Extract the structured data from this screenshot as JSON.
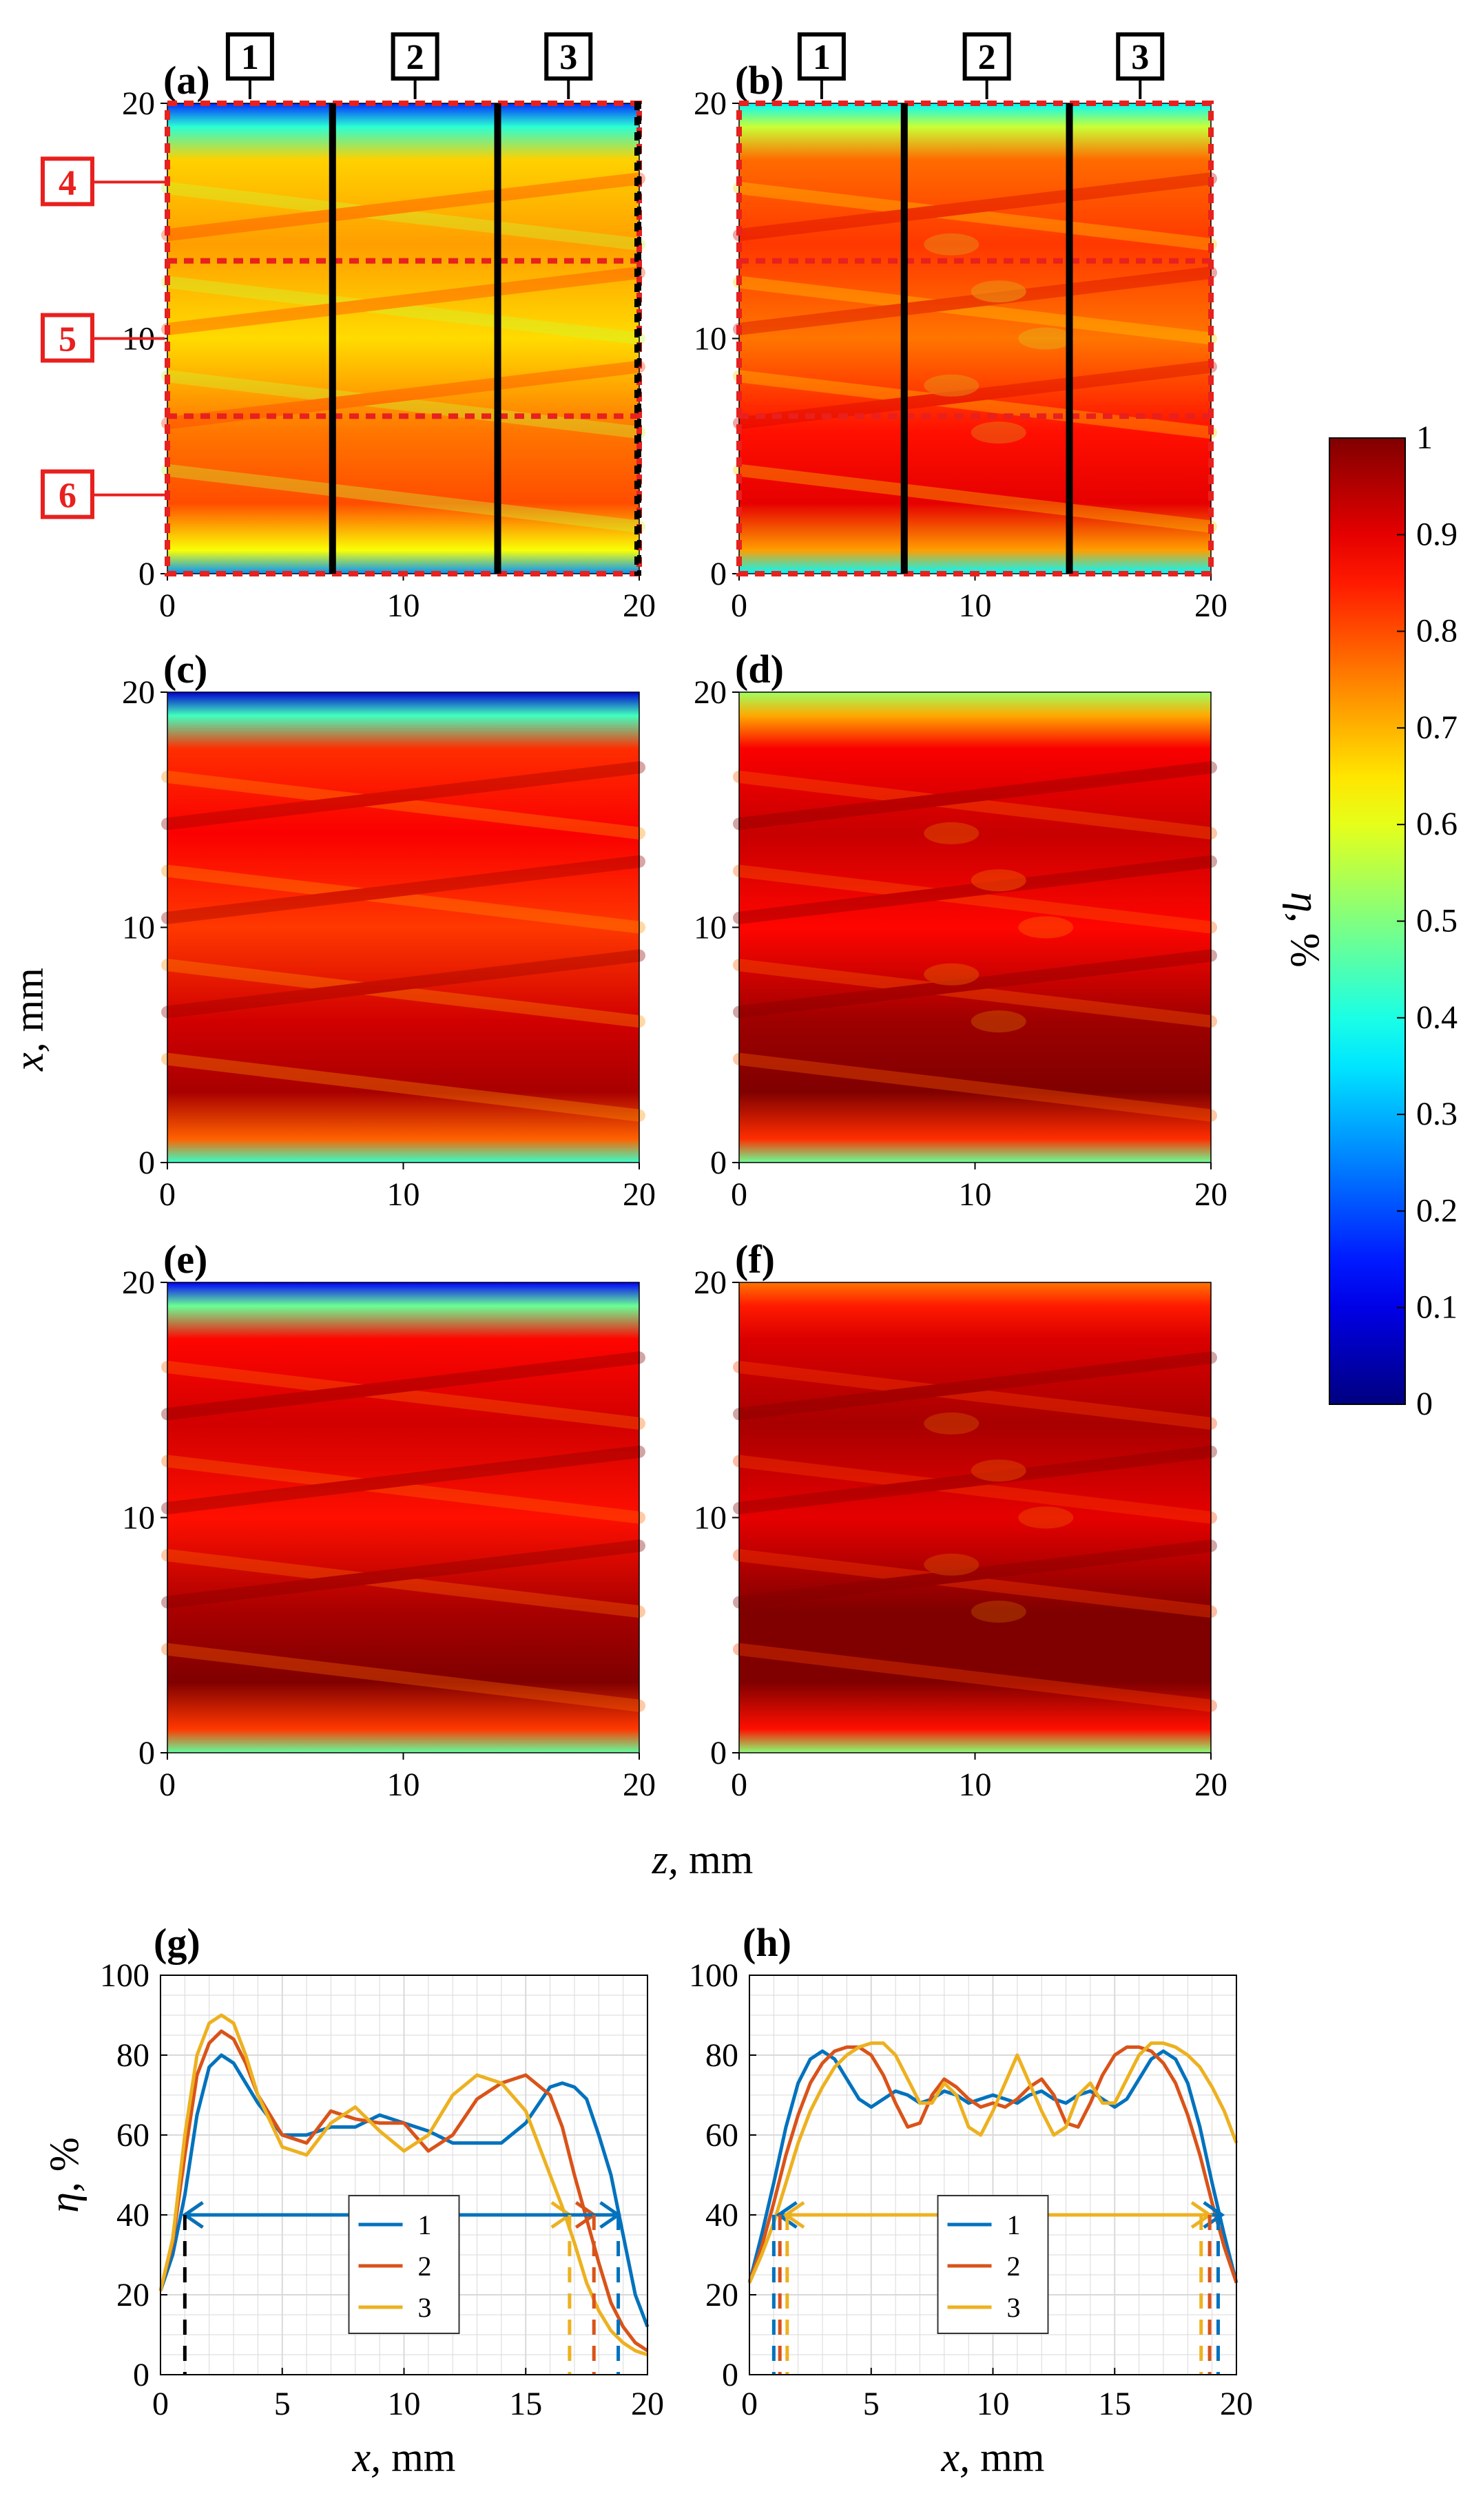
{
  "figure": {
    "panels": [
      {
        "id": "a",
        "label": "(a)",
        "type": "heatmap",
        "kind": "exp",
        "level": 0.72,
        "top_fade": 0.55,
        "bands": true
      },
      {
        "id": "b",
        "label": "(b)",
        "type": "heatmap",
        "kind": "sim",
        "level": 0.82,
        "top_fade": 0.45,
        "bands": true
      },
      {
        "id": "c",
        "label": "(c)",
        "type": "heatmap",
        "kind": "exp",
        "level": 0.88,
        "top_fade": 0.8,
        "bands": false
      },
      {
        "id": "d",
        "label": "(d)",
        "type": "heatmap",
        "kind": "sim",
        "level": 0.93,
        "top_fade": 0.4,
        "bands": false
      },
      {
        "id": "e",
        "label": "(e)",
        "type": "heatmap",
        "kind": "exp",
        "level": 0.92,
        "top_fade": 0.8,
        "bands": false
      },
      {
        "id": "f",
        "label": "(f)",
        "type": "heatmap",
        "kind": "sim",
        "level": 0.96,
        "top_fade": 0.2,
        "bands": false
      }
    ],
    "heatmap_axes": {
      "xlabel_var": "z,",
      "xlabel_unit": " mm",
      "ylabel_var": "x,",
      "ylabel_unit": " mm",
      "xlim": [
        0,
        20
      ],
      "ylim": [
        0,
        20
      ],
      "ticks": [
        "0",
        "10",
        "20"
      ],
      "tick_values": [
        0,
        10,
        20
      ]
    },
    "zone_boxes": {
      "vertical": [
        {
          "label": "1",
          "z_from": 0,
          "z_to": 7
        },
        {
          "label": "2",
          "z_from": 7,
          "z_to": 14
        },
        {
          "label": "3",
          "z_from": 14,
          "z_to": 20
        }
      ],
      "horizontal": [
        {
          "label": "4",
          "x_from": 13.3,
          "x_to": 20
        },
        {
          "label": "5",
          "x_from": 6.7,
          "x_to": 13.3
        },
        {
          "label": "6",
          "x_from": 0,
          "x_to": 6.7
        }
      ]
    },
    "colorbar": {
      "label_var": "η",
      "label_unit": ", %",
      "range": [
        0,
        1
      ],
      "ticks": [
        "0",
        "0.1",
        "0.2",
        "0.3",
        "0.4",
        "0.5",
        "0.6",
        "0.7",
        "0.8",
        "0.9",
        "1"
      ],
      "tick_values": [
        0,
        0.1,
        0.2,
        0.3,
        0.4,
        0.5,
        0.6,
        0.7,
        0.8,
        0.9,
        1
      ]
    },
    "colors": {
      "series_1": "#0072BD",
      "series_2": "#D95319",
      "series_3": "#EDB120",
      "zone_red": "#E8201E",
      "black": "#000000",
      "grid": "#d9d9d9"
    }
  },
  "chart_data": [
    {
      "id": "g",
      "label": "(g)",
      "type": "line",
      "xlabel_var": "x,",
      "xlabel_unit": " mm",
      "ylabel_var": "η",
      "ylabel_unit": ", %",
      "xlim": [
        0,
        20
      ],
      "ylim": [
        0,
        100
      ],
      "xticks": [
        "0",
        "5",
        "10",
        "15",
        "20"
      ],
      "xtick_values": [
        0,
        5,
        10,
        15,
        20
      ],
      "yticks": [
        "0",
        "20",
        "40",
        "60",
        "80",
        "100"
      ],
      "ytick_values": [
        0,
        20,
        40,
        60,
        80,
        100
      ],
      "grid": true,
      "legend_position": "bottom-center",
      "x": [
        0,
        0.5,
        1,
        1.5,
        2,
        2.5,
        3,
        3.5,
        4,
        5,
        6,
        7,
        8,
        9,
        10,
        11,
        12,
        13,
        14,
        15,
        16,
        16.5,
        17,
        17.5,
        18,
        18.5,
        19,
        19.5,
        20
      ],
      "series": [
        {
          "name": "1",
          "values": [
            21,
            30,
            45,
            65,
            77,
            80,
            78,
            73,
            68,
            60,
            60,
            62,
            62,
            65,
            63,
            61,
            58,
            58,
            58,
            63,
            72,
            73,
            72,
            69,
            60,
            50,
            35,
            20,
            12
          ]
        },
        {
          "name": "2",
          "values": [
            21,
            33,
            55,
            75,
            83,
            86,
            84,
            78,
            70,
            60,
            58,
            66,
            64,
            63,
            63,
            56,
            60,
            69,
            73,
            75,
            70,
            62,
            50,
            39,
            28,
            18,
            12,
            8,
            6
          ]
        },
        {
          "name": "3",
          "values": [
            21,
            34,
            60,
            80,
            88,
            90,
            88,
            80,
            70,
            57,
            55,
            63,
            67,
            61,
            56,
            60,
            70,
            75,
            73,
            66,
            50,
            42,
            33,
            23,
            16,
            11,
            8,
            6,
            5
          ]
        }
      ],
      "width_arrows": [
        {
          "from": 1.0,
          "to": 16.8,
          "y": 40,
          "color_key": "series_3"
        },
        {
          "from": 1.0,
          "to": 17.8,
          "y": 40,
          "color_key": "series_2"
        },
        {
          "from": 1.0,
          "to": 18.8,
          "y": 40,
          "color_key": "series_1"
        }
      ],
      "marker_lines": [
        {
          "x": 1.0,
          "color_key": "black"
        },
        {
          "x": 16.8,
          "color_key": "series_3"
        },
        {
          "x": 17.8,
          "color_key": "series_2"
        },
        {
          "x": 18.8,
          "color_key": "series_1"
        }
      ]
    },
    {
      "id": "h",
      "label": "(h)",
      "type": "line",
      "xlabel_var": "x,",
      "xlabel_unit": " mm",
      "ylabel_var": "",
      "ylabel_unit": "",
      "xlim": [
        0,
        20
      ],
      "ylim": [
        0,
        100
      ],
      "xticks": [
        "0",
        "5",
        "10",
        "15",
        "20"
      ],
      "xtick_values": [
        0,
        5,
        10,
        15,
        20
      ],
      "yticks": [
        "0",
        "20",
        "40",
        "60",
        "80",
        "100"
      ],
      "ytick_values": [
        0,
        20,
        40,
        60,
        80,
        100
      ],
      "grid": true,
      "legend_position": "bottom-center",
      "x": [
        0,
        0.5,
        1,
        1.5,
        2,
        2.5,
        3,
        3.5,
        4,
        4.5,
        5,
        5.5,
        6,
        6.5,
        7,
        7.5,
        8,
        8.5,
        9,
        9.5,
        10,
        10.5,
        11,
        11.5,
        12,
        12.5,
        13,
        13.5,
        14,
        14.5,
        15,
        15.5,
        16,
        16.5,
        17,
        17.5,
        18,
        18.5,
        19,
        19.5,
        20
      ],
      "series": [
        {
          "name": "1",
          "values": [
            23,
            35,
            48,
            62,
            73,
            79,
            81,
            79,
            74,
            69,
            67,
            69,
            71,
            70,
            68,
            69,
            71,
            70,
            68,
            69,
            70,
            69,
            68,
            70,
            71,
            69,
            68,
            70,
            71,
            69,
            67,
            69,
            74,
            79,
            81,
            79,
            73,
            62,
            48,
            35,
            23
          ]
        },
        {
          "name": "2",
          "values": [
            23,
            32,
            43,
            55,
            65,
            73,
            78,
            81,
            82,
            82,
            80,
            75,
            68,
            62,
            63,
            70,
            74,
            72,
            69,
            67,
            68,
            67,
            69,
            72,
            74,
            70,
            63,
            62,
            68,
            75,
            80,
            82,
            82,
            81,
            78,
            73,
            65,
            55,
            43,
            32,
            23
          ]
        },
        {
          "name": "3",
          "values": [
            23,
            30,
            38,
            48,
            58,
            66,
            72,
            77,
            80,
            82,
            83,
            83,
            80,
            74,
            68,
            68,
            73,
            70,
            62,
            60,
            66,
            73,
            80,
            73,
            66,
            60,
            62,
            70,
            73,
            68,
            68,
            74,
            80,
            83,
            83,
            82,
            80,
            77,
            72,
            66,
            58
          ]
        }
      ],
      "width_arrows": [
        {
          "from": 1.2,
          "to": 19.4,
          "y": 40,
          "color_key": "series_1"
        },
        {
          "from": 1.5,
          "to": 18.9,
          "y": 40,
          "color_key": "series_3"
        }
      ],
      "marker_lines": [
        {
          "x": 1.0,
          "color_key": "series_1"
        },
        {
          "x": 1.25,
          "color_key": "series_2"
        },
        {
          "x": 1.55,
          "color_key": "series_3"
        },
        {
          "x": 18.55,
          "color_key": "series_3"
        },
        {
          "x": 18.9,
          "color_key": "series_2"
        },
        {
          "x": 19.25,
          "color_key": "series_1"
        }
      ]
    }
  ]
}
